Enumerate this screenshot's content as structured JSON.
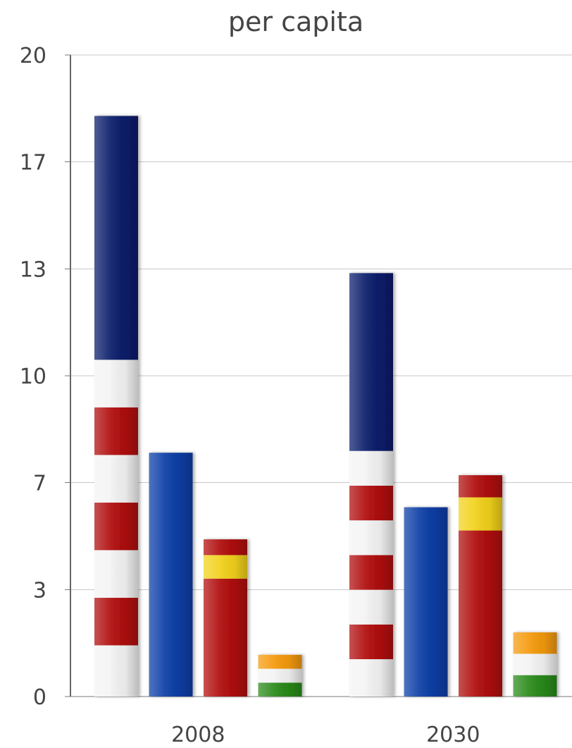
{
  "chart_data": {
    "type": "bar",
    "title": "per capita",
    "xlabel": "",
    "ylabel": "",
    "categories": [
      "2008",
      "2030"
    ],
    "ylim": [
      0,
      20
    ],
    "yticks": [
      "0",
      "3",
      "7",
      "10",
      "13",
      "17",
      "20"
    ],
    "ytick_values": [
      0,
      3.33,
      6.67,
      10,
      13.33,
      16.67,
      20
    ],
    "grid": true,
    "legend": "none",
    "series": [
      {
        "values": [
          18.1,
          13.2
        ],
        "style": "striped-flag",
        "colors": [
          "#f4f4f4",
          "#b10d0d",
          "#0a1d6b"
        ]
      },
      {
        "values": [
          7.6,
          5.9
        ],
        "style": "solid",
        "colors": [
          "#0b3ea6"
        ]
      },
      {
        "values": [
          4.9,
          6.9
        ],
        "style": "band-flag",
        "colors": [
          "#b10d0d",
          "#f2d21c"
        ]
      },
      {
        "values": [
          1.3,
          2.0
        ],
        "style": "tricolor-flag",
        "colors": [
          "#f59a0c",
          "#f4f4f4",
          "#2a8a1a"
        ]
      }
    ]
  }
}
